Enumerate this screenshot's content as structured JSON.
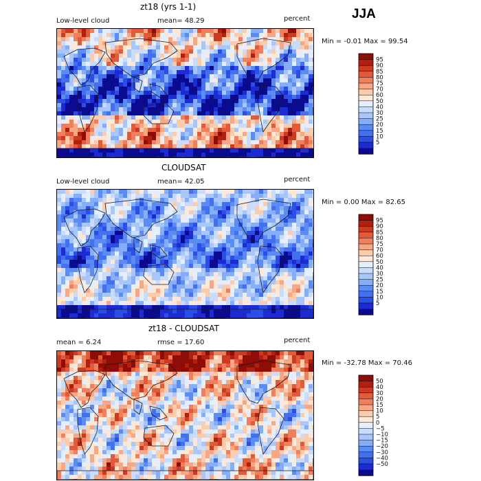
{
  "season": "JJA",
  "colors": {
    "scale_a": [
      "#0a0b8f",
      "#1c2bd2",
      "#2a4ee6",
      "#4470f0",
      "#5a8cf3",
      "#86adf7",
      "#a9c6fa",
      "#c9dcfc",
      "#e4eefd",
      "#fde7d6",
      "#fbcbad",
      "#f7a784",
      "#f07f5e",
      "#e15a3a",
      "#cc3a22",
      "#b0200f",
      "#8f0d07"
    ],
    "scale_b": [
      "#0a0b8f",
      "#1c2bd2",
      "#2a4ee6",
      "#4470f0",
      "#5a8cf3",
      "#86adf7",
      "#a9c6fa",
      "#c9dcfc",
      "#e4eefd",
      "#fde7d6",
      "#fbcbad",
      "#f7a784",
      "#f07f5e",
      "#e15a3a",
      "#cc3a22",
      "#b0200f",
      "#8f0d07"
    ]
  },
  "panels": [
    {
      "title": "zt18 (yrs 1-1)",
      "left_label": "Low-level cloud",
      "mid_label": "mean=  48.29",
      "unit": "percent",
      "stats": "Min =  -0.01 Max =  99.54",
      "levels": [
        "95",
        "90",
        "85",
        "80",
        "75",
        "70",
        "60",
        "50",
        "40",
        "30",
        "25",
        "20",
        "15",
        "10",
        "5"
      ]
    },
    {
      "title": "CLOUDSAT",
      "left_label": "Low-level cloud",
      "mid_label": "mean=  42.05",
      "unit": "percent",
      "stats": "Min =   0.00 Max =  82.65",
      "levels": [
        "95",
        "90",
        "85",
        "80",
        "75",
        "70",
        "60",
        "50",
        "40",
        "30",
        "25",
        "20",
        "15",
        "10",
        "5"
      ]
    },
    {
      "title": "zt18 - CLOUDSAT",
      "left_label": "mean =   6.24",
      "mid_label": "rmse =  17.60",
      "unit": "percent",
      "stats": "Min = -32.78 Max =  70.46",
      "levels": [
        "50",
        "40",
        "30",
        "20",
        "15",
        "10",
        "5",
        "0",
        "−5",
        "−10",
        "−15",
        "−20",
        "−30",
        "−40",
        "−50"
      ]
    }
  ],
  "chart_data": [
    {
      "type": "heatmap",
      "title": "zt18 (yrs 1-1)",
      "variable": "Low-level cloud",
      "unit": "percent",
      "mean": 48.29,
      "min": -0.01,
      "max": 99.54,
      "contour_levels": [
        5,
        10,
        15,
        20,
        25,
        30,
        40,
        50,
        60,
        70,
        75,
        80,
        85,
        90,
        95
      ],
      "projection": "global cylindrical, Pacific-centred, coastlines drawn"
    },
    {
      "type": "heatmap",
      "title": "CLOUDSAT",
      "variable": "Low-level cloud",
      "unit": "percent",
      "mean": 42.05,
      "min": 0.0,
      "max": 82.65,
      "contour_levels": [
        5,
        10,
        15,
        20,
        25,
        30,
        40,
        50,
        60,
        70,
        75,
        80,
        85,
        90,
        95
      ],
      "projection": "global cylindrical, Pacific-centred, coastlines drawn"
    },
    {
      "type": "heatmap",
      "title": "zt18 - CLOUDSAT",
      "unit": "percent",
      "mean": 6.24,
      "rmse": 17.6,
      "min": -32.78,
      "max": 70.46,
      "contour_levels": [
        -50,
        -40,
        -30,
        -20,
        -15,
        -10,
        -5,
        0,
        5,
        10,
        15,
        20,
        30,
        40,
        50
      ],
      "projection": "global cylindrical, Pacific-centred, coastlines drawn"
    }
  ]
}
